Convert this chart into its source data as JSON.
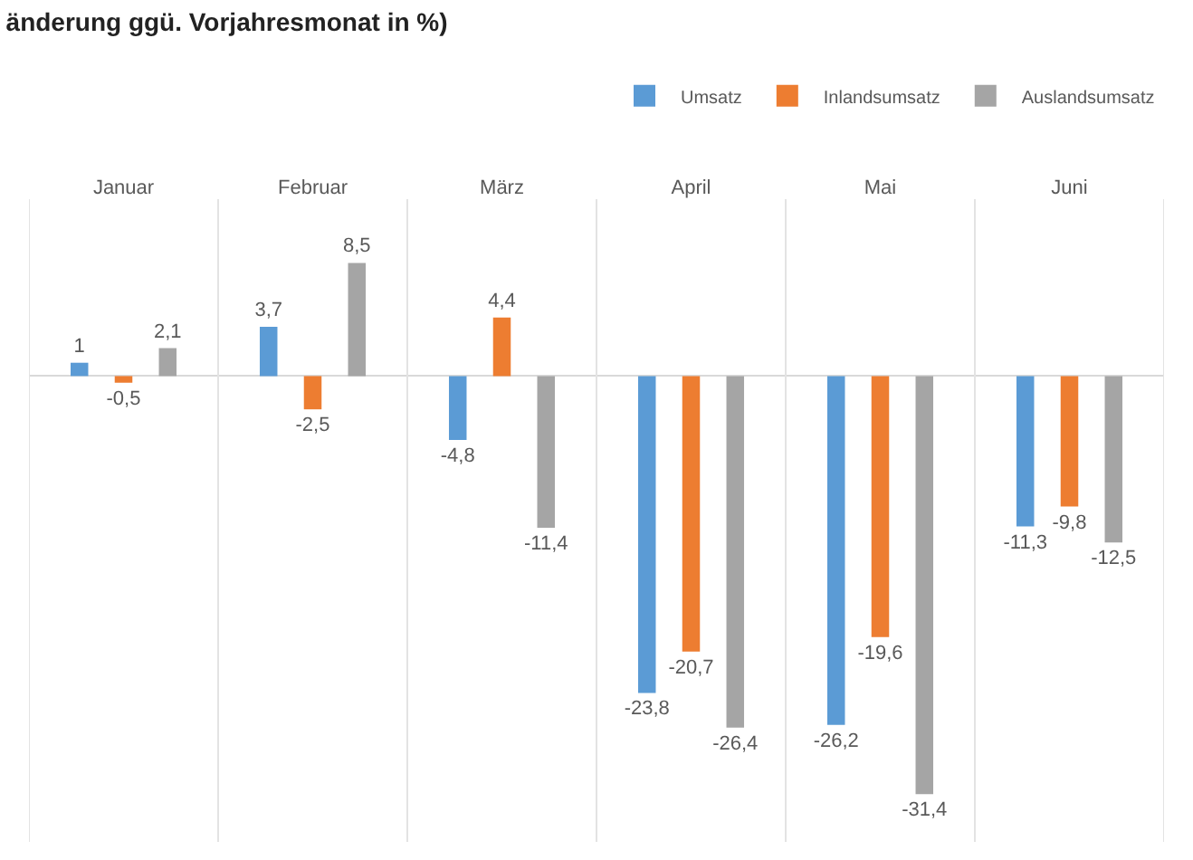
{
  "chart_data": {
    "type": "bar",
    "title": "änderung ggü. Vorjahresmonat in %)",
    "categories": [
      "Januar",
      "Februar",
      "März",
      "April",
      "Mai",
      "Juni"
    ],
    "series": [
      {
        "name": "Umsatz",
        "color": "#5b9bd5",
        "values": [
          1,
          3.7,
          -4.8,
          -23.8,
          -26.2,
          -11.3
        ],
        "value_labels": [
          "1",
          "3,7",
          "-4,8",
          "-23,8",
          "-26,2",
          "-11,3"
        ]
      },
      {
        "name": "Inlandsumsatz",
        "color": "#ed7d31",
        "values": [
          -0.5,
          -2.5,
          4.4,
          -20.7,
          -19.6,
          -9.8
        ],
        "value_labels": [
          "-0,5",
          "-2,5",
          "4,4",
          "-20,7",
          "-19,6",
          "-9,8"
        ]
      },
      {
        "name": "Auslandsumsatz",
        "color": "#a5a5a5",
        "values": [
          2.1,
          8.5,
          -11.4,
          -26.4,
          -31.4,
          -12.5
        ],
        "value_labels": [
          "2,1",
          "8,5",
          "-11,4",
          "-26,4",
          "-31,4",
          "-12,5"
        ]
      }
    ],
    "grid": "x",
    "legend": "top right"
  }
}
